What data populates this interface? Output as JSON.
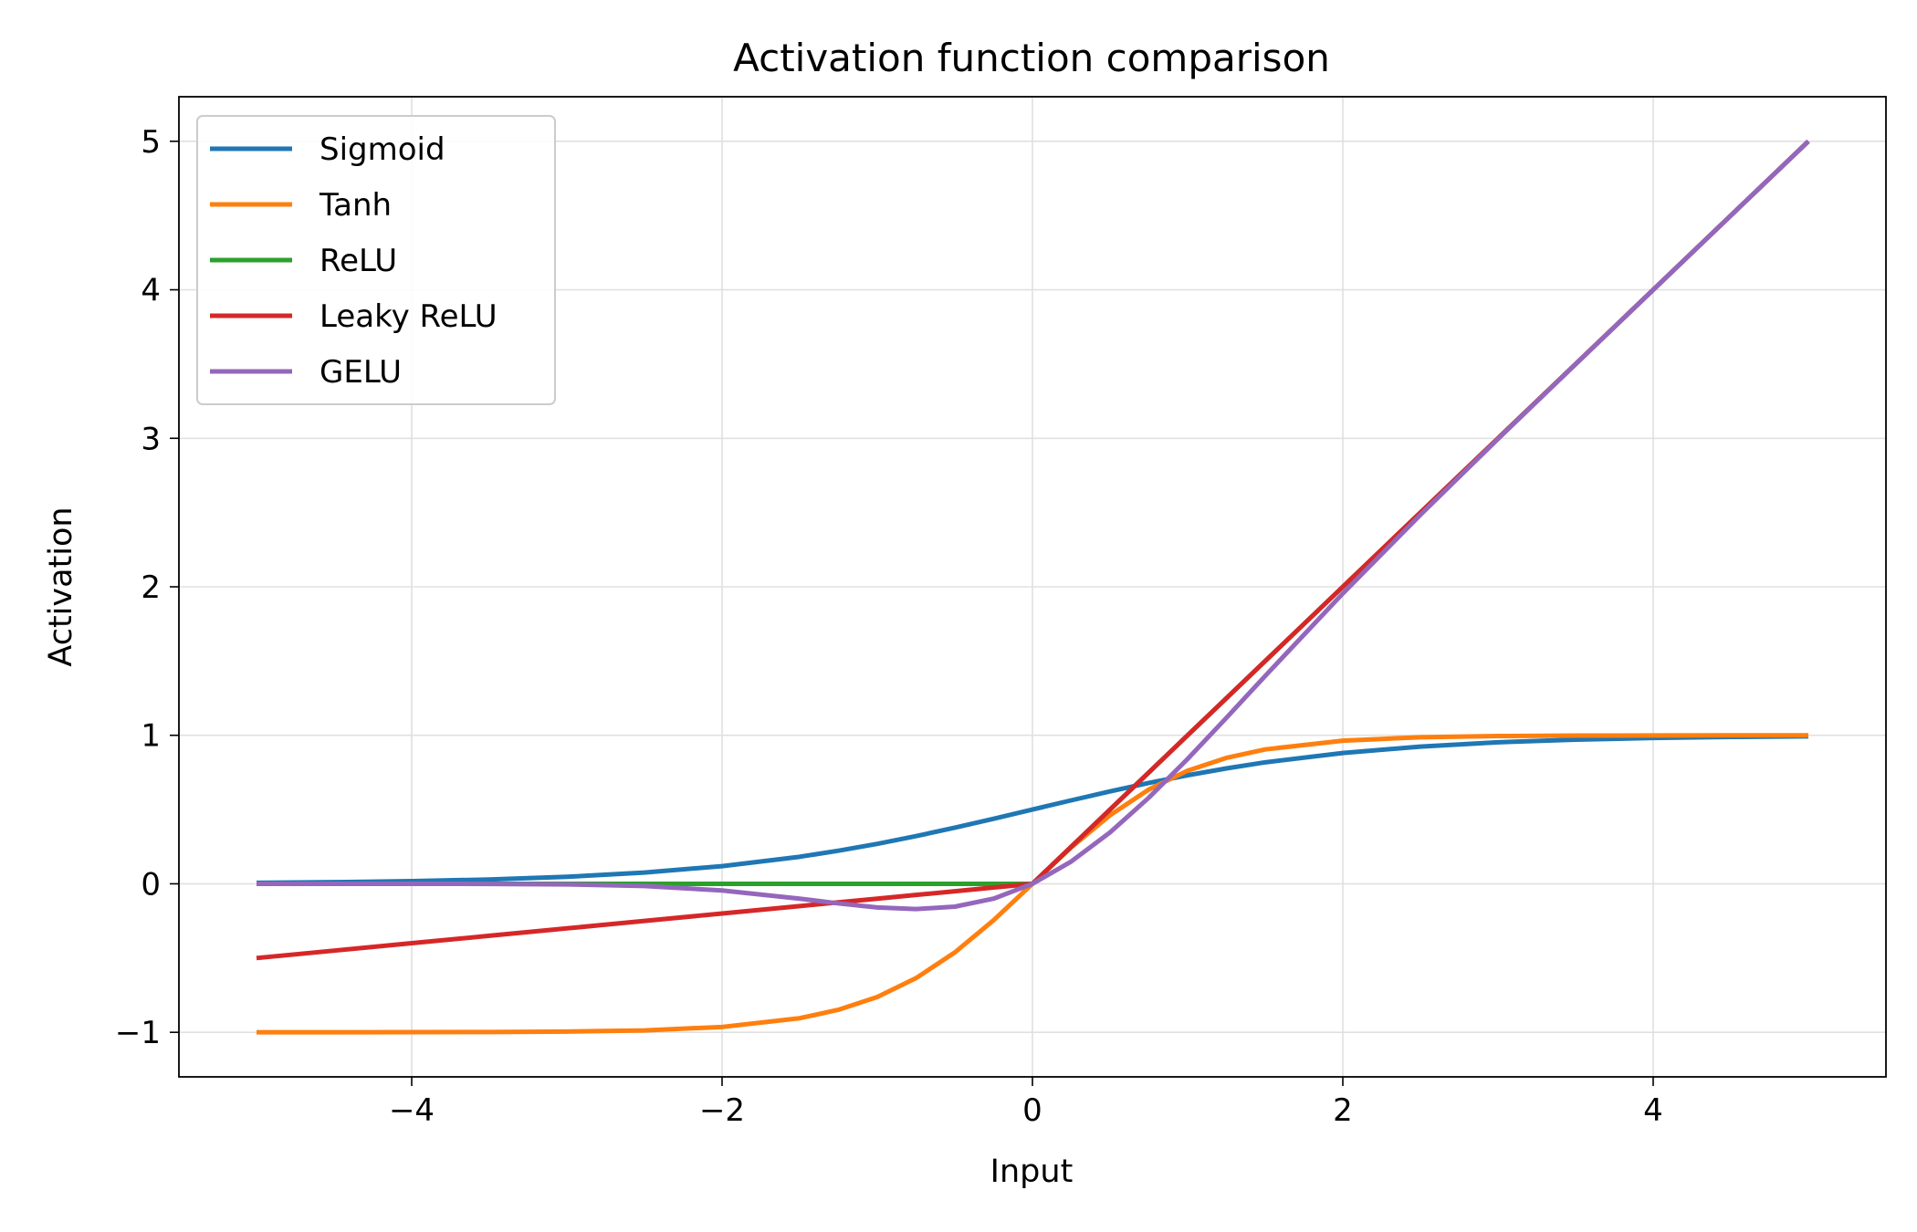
{
  "chart_data": {
    "type": "line",
    "title": "Activation function comparison",
    "xlabel": "Input",
    "ylabel": "Activation",
    "xlim": [
      -5.5,
      5.5
    ],
    "ylim": [
      -1.3,
      5.3
    ],
    "x_ticks": [
      -4,
      -2,
      0,
      2,
      4
    ],
    "y_ticks": [
      -1,
      0,
      1,
      2,
      3,
      4,
      5
    ],
    "x_tick_labels": [
      "−4",
      "−2",
      "0",
      "2",
      "4"
    ],
    "y_tick_labels": [
      "−1",
      "0",
      "1",
      "2",
      "3",
      "4",
      "5"
    ],
    "grid": true,
    "legend_position": "top-left",
    "x": [
      -5,
      -4.5,
      -4,
      -3.5,
      -3,
      -2.5,
      -2,
      -1.5,
      -1.25,
      -1,
      -0.75,
      -0.5,
      -0.25,
      0,
      0.25,
      0.5,
      0.75,
      1,
      1.25,
      1.5,
      2,
      2.5,
      3,
      3.5,
      4,
      4.5,
      5
    ],
    "series": [
      {
        "name": "Sigmoid",
        "color": "#1f77b4",
        "values": [
          0.007,
          0.011,
          0.018,
          0.029,
          0.047,
          0.076,
          0.119,
          0.182,
          0.223,
          0.269,
          0.321,
          0.378,
          0.438,
          0.5,
          0.562,
          0.622,
          0.679,
          0.731,
          0.777,
          0.818,
          0.881,
          0.924,
          0.953,
          0.971,
          0.982,
          0.989,
          0.993
        ]
      },
      {
        "name": "Tanh",
        "color": "#ff7f0e",
        "values": [
          -1.0,
          -1.0,
          -0.999,
          -0.998,
          -0.995,
          -0.987,
          -0.964,
          -0.905,
          -0.848,
          -0.762,
          -0.635,
          -0.462,
          -0.245,
          0.0,
          0.245,
          0.462,
          0.635,
          0.762,
          0.848,
          0.905,
          0.964,
          0.987,
          0.995,
          0.998,
          0.999,
          1.0,
          1.0
        ]
      },
      {
        "name": "ReLU",
        "color": "#2ca02c",
        "values": [
          0,
          0,
          0,
          0,
          0,
          0,
          0,
          0,
          0,
          0,
          0,
          0,
          0,
          0,
          0.25,
          0.5,
          0.75,
          1,
          1.25,
          1.5,
          2,
          2.5,
          3,
          3.5,
          4,
          4.5,
          5
        ]
      },
      {
        "name": "Leaky ReLU",
        "color": "#d62728",
        "values": [
          -0.5,
          -0.45,
          -0.4,
          -0.35,
          -0.3,
          -0.25,
          -0.2,
          -0.15,
          -0.125,
          -0.1,
          -0.075,
          -0.05,
          -0.025,
          0,
          0.25,
          0.5,
          0.75,
          1,
          1.25,
          1.5,
          2,
          2.5,
          3,
          3.5,
          4,
          4.5,
          5
        ]
      },
      {
        "name": "GELU",
        "color": "#9467bd",
        "values": [
          0.0,
          0.0,
          -0.0001,
          -0.0008,
          -0.004,
          -0.015,
          -0.045,
          -0.1,
          -0.132,
          -0.159,
          -0.17,
          -0.154,
          -0.1,
          0.0,
          0.15,
          0.346,
          0.58,
          0.841,
          1.118,
          1.4,
          1.955,
          2.485,
          2.996,
          3.499,
          4.0,
          4.5,
          5.0
        ]
      }
    ]
  }
}
